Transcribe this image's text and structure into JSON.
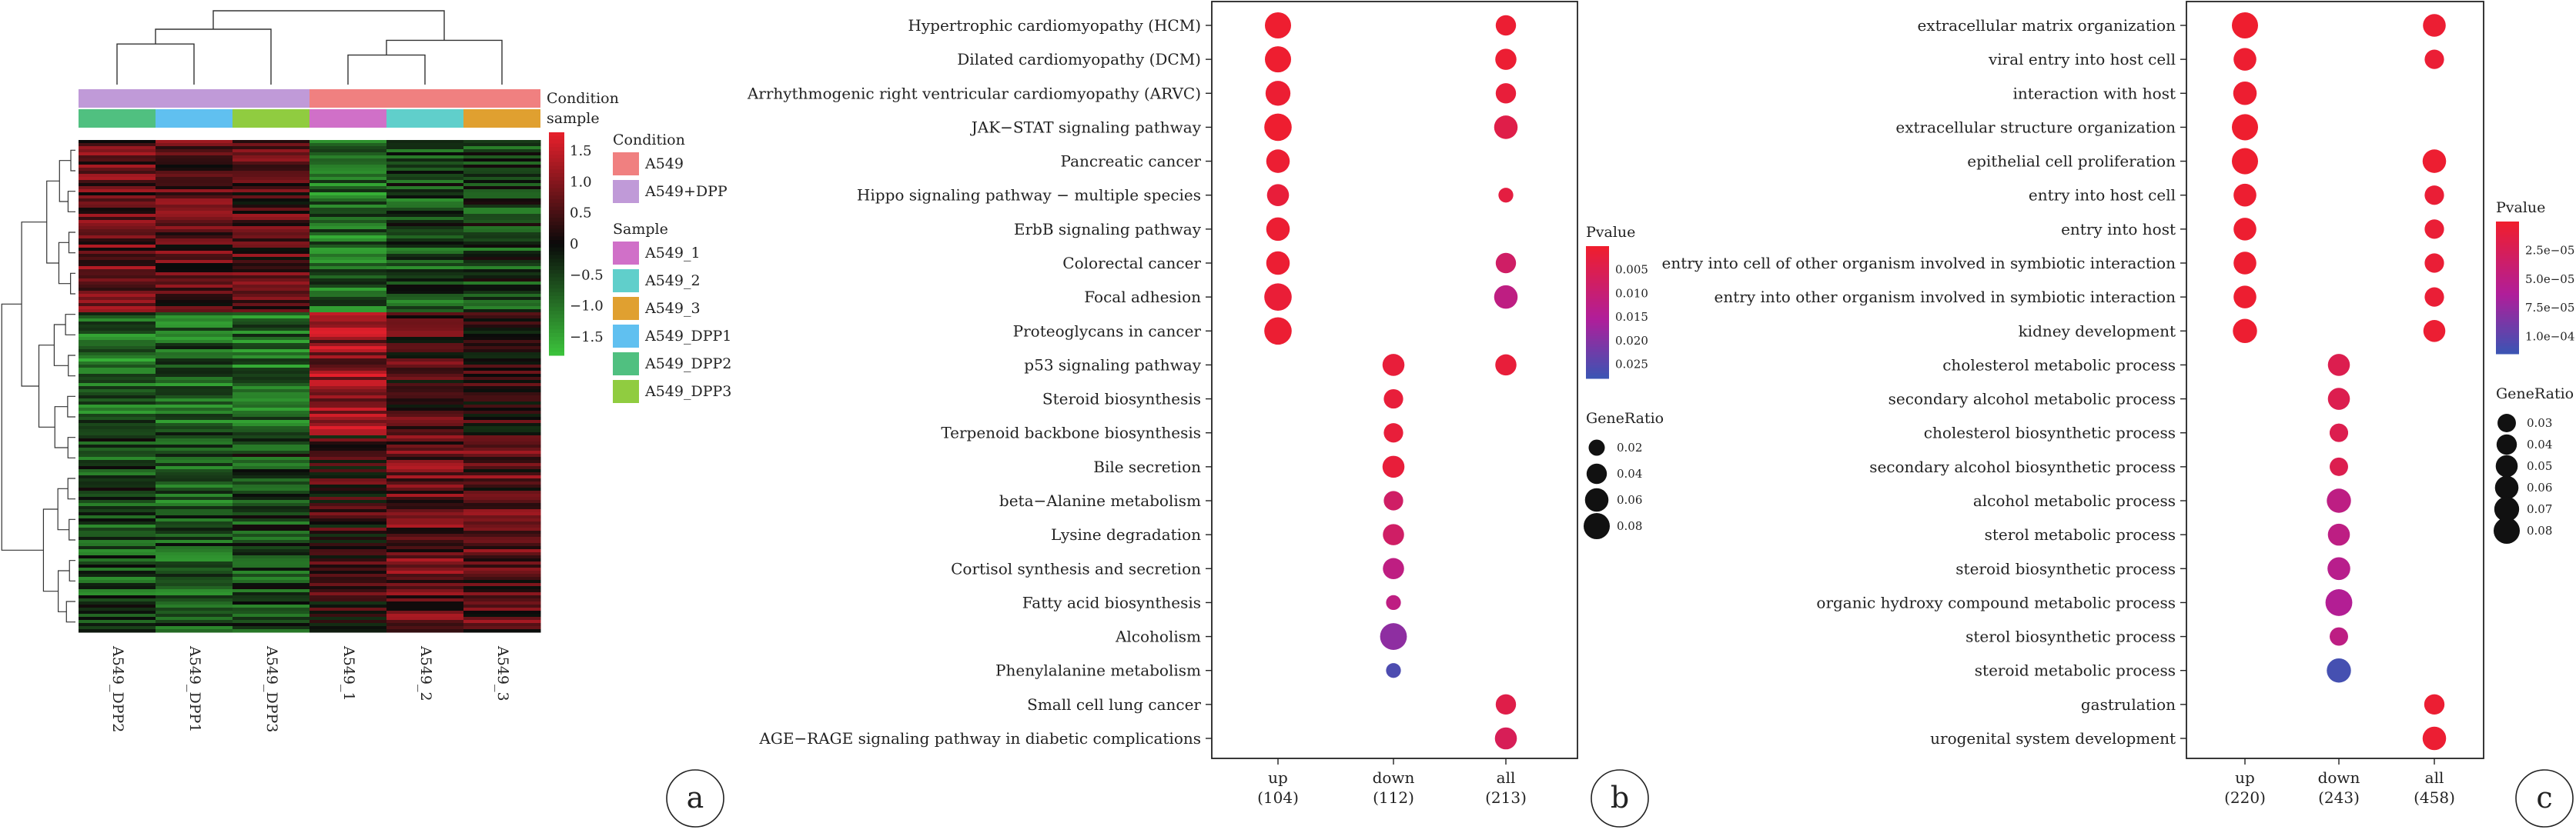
{
  "chart_data": [
    {
      "panel": "a",
      "type": "heatmap",
      "columns": [
        "A549_DPP2",
        "A549_DPP1",
        "A549_DPP3",
        "A549_1",
        "A549_2",
        "A549_3"
      ],
      "annotation_rows": [
        "Condition",
        "sample"
      ],
      "condition_legend": {
        "title": "Condition",
        "items": [
          {
            "label": "A549",
            "color": "#F08080"
          },
          {
            "label": "A549+DPP",
            "color": "#C09AD8"
          }
        ]
      },
      "sample_legend": {
        "title": "Sample",
        "items": [
          {
            "label": "A549_1",
            "color": "#D070C8"
          },
          {
            "label": "A549_2",
            "color": "#60CFCB"
          },
          {
            "label": "A549_3",
            "color": "#E0A030"
          },
          {
            "label": "A549_DPP1",
            "color": "#60C0F0"
          },
          {
            "label": "A549_DPP2",
            "color": "#50C080"
          },
          {
            "label": "A549_DPP3",
            "color": "#90CC40"
          }
        ]
      },
      "column_condition": [
        "A549+DPP",
        "A549+DPP",
        "A549+DPP",
        "A549",
        "A549",
        "A549"
      ],
      "column_sample": [
        "A549_DPP2",
        "A549_DPP1",
        "A549_DPP3",
        "A549_1",
        "A549_2",
        "A549_3"
      ],
      "colorbar": {
        "ticks": [
          1.5,
          1.0,
          0.5,
          0,
          -0.5,
          -1.0,
          -1.5
        ],
        "tick_labels": [
          "1.5",
          "1.0",
          "0.5",
          "0",
          "−0.5",
          "−1.0",
          "−1.5"
        ],
        "range": [
          -1.8,
          1.8
        ]
      },
      "column_dendrogram": [
        {
          "a": 0,
          "b": 1,
          "h": 0.55
        },
        {
          "a": 3,
          "b": 4,
          "h": 0.4
        },
        {
          "a": "c1",
          "b": 2,
          "h": 0.75
        },
        {
          "a": "c2",
          "b": 5,
          "h": 0.6
        },
        {
          "a": "c3",
          "b": "c4",
          "h": 1.0
        }
      ],
      "row_blocks": [
        {
          "frac": 0.35,
          "values": [
            0.7,
            0.6,
            0.5,
            -0.9,
            -0.6,
            -0.5
          ]
        },
        {
          "frac": 0.25,
          "values": [
            -0.9,
            -0.8,
            -0.9,
            1.1,
            0.4,
            0.3
          ]
        },
        {
          "frac": 0.4,
          "values": [
            -0.6,
            -0.7,
            -0.5,
            0.3,
            0.7,
            0.6
          ]
        }
      ]
    },
    {
      "panel": "b",
      "type": "scatter",
      "x_categories": [
        "up",
        "down",
        "all"
      ],
      "x_counts": [
        "(104)",
        "(112)",
        "(213)"
      ],
      "terms": [
        "Hypertrophic cardiomyopathy (HCM)",
        "Dilated cardiomyopathy (DCM)",
        "Arrhythmogenic right ventricular cardiomyopathy (ARVC)",
        "JAK−STAT signaling pathway",
        "Pancreatic cancer",
        "Hippo signaling pathway − multiple species",
        "ErbB signaling pathway",
        "Colorectal cancer",
        "Focal adhesion",
        "Proteoglycans in cancer",
        "p53 signaling pathway",
        "Steroid biosynthesis",
        "Terpenoid backbone biosynthesis",
        "Bile secretion",
        "beta−Alanine metabolism",
        "Lysine degradation",
        "Cortisol synthesis and secretion",
        "Fatty acid biosynthesis",
        "Alcoholism",
        "Phenylalanine metabolism",
        "Small cell lung cancer",
        "AGE−RAGE signaling pathway in diabetic complications"
      ],
      "points": [
        {
          "term": 0,
          "x": "up",
          "gene_ratio": 0.08,
          "pvalue": 0.0005
        },
        {
          "term": 0,
          "x": "all",
          "gene_ratio": 0.04,
          "pvalue": 0.001
        },
        {
          "term": 1,
          "x": "up",
          "gene_ratio": 0.08,
          "pvalue": 0.0005
        },
        {
          "term": 1,
          "x": "all",
          "gene_ratio": 0.045,
          "pvalue": 0.001
        },
        {
          "term": 2,
          "x": "up",
          "gene_ratio": 0.07,
          "pvalue": 0.001
        },
        {
          "term": 2,
          "x": "all",
          "gene_ratio": 0.04,
          "pvalue": 0.002
        },
        {
          "term": 3,
          "x": "up",
          "gene_ratio": 0.09,
          "pvalue": 0.0005
        },
        {
          "term": 3,
          "x": "all",
          "gene_ratio": 0.06,
          "pvalue": 0.004
        },
        {
          "term": 4,
          "x": "up",
          "gene_ratio": 0.06,
          "pvalue": 0.001
        },
        {
          "term": 5,
          "x": "up",
          "gene_ratio": 0.05,
          "pvalue": 0.002
        },
        {
          "term": 5,
          "x": "all",
          "gene_ratio": 0.015,
          "pvalue": 0.003
        },
        {
          "term": 6,
          "x": "up",
          "gene_ratio": 0.06,
          "pvalue": 0.001
        },
        {
          "term": 7,
          "x": "up",
          "gene_ratio": 0.06,
          "pvalue": 0.001
        },
        {
          "term": 7,
          "x": "all",
          "gene_ratio": 0.04,
          "pvalue": 0.008
        },
        {
          "term": 8,
          "x": "up",
          "gene_ratio": 0.09,
          "pvalue": 0.0015
        },
        {
          "term": 8,
          "x": "all",
          "gene_ratio": 0.06,
          "pvalue": 0.012
        },
        {
          "term": 9,
          "x": "up",
          "gene_ratio": 0.09,
          "pvalue": 0.001
        },
        {
          "term": 10,
          "x": "down",
          "gene_ratio": 0.05,
          "pvalue": 0.002
        },
        {
          "term": 10,
          "x": "all",
          "gene_ratio": 0.045,
          "pvalue": 0.002
        },
        {
          "term": 11,
          "x": "down",
          "gene_ratio": 0.035,
          "pvalue": 0.002
        },
        {
          "term": 12,
          "x": "down",
          "gene_ratio": 0.035,
          "pvalue": 0.002
        },
        {
          "term": 13,
          "x": "down",
          "gene_ratio": 0.05,
          "pvalue": 0.002
        },
        {
          "term": 14,
          "x": "down",
          "gene_ratio": 0.035,
          "pvalue": 0.008
        },
        {
          "term": 15,
          "x": "down",
          "gene_ratio": 0.045,
          "pvalue": 0.008
        },
        {
          "term": 16,
          "x": "down",
          "gene_ratio": 0.045,
          "pvalue": 0.012
        },
        {
          "term": 17,
          "x": "down",
          "gene_ratio": 0.015,
          "pvalue": 0.012
        },
        {
          "term": 18,
          "x": "down",
          "gene_ratio": 0.085,
          "pvalue": 0.019
        },
        {
          "term": 19,
          "x": "down",
          "gene_ratio": 0.015,
          "pvalue": 0.026
        },
        {
          "term": 20,
          "x": "all",
          "gene_ratio": 0.04,
          "pvalue": 0.004
        },
        {
          "term": 21,
          "x": "all",
          "gene_ratio": 0.05,
          "pvalue": 0.006
        }
      ],
      "pvalue_legend": {
        "title": "Pvalue",
        "ticks": [
          0.005,
          0.01,
          0.015,
          0.02,
          0.025
        ],
        "tick_labels": [
          "0.005",
          "0.010",
          "0.015",
          "0.020",
          "0.025"
        ],
        "range": [
          0.0,
          0.028
        ]
      },
      "size_legend": {
        "title": "GeneRatio",
        "values": [
          0.02,
          0.04,
          0.06,
          0.08
        ],
        "labels": [
          "0.02",
          "0.04",
          "0.06",
          "0.08"
        ]
      }
    },
    {
      "panel": "c",
      "type": "scatter",
      "x_categories": [
        "up",
        "down",
        "all"
      ],
      "x_counts": [
        "(220)",
        "(243)",
        "(458)"
      ],
      "terms": [
        "extracellular matrix organization",
        "viral entry into host cell",
        "interaction with host",
        "extracellular structure organization",
        "epithelial cell proliferation",
        "entry into host cell",
        "entry into host",
        "entry into cell of other organism involved in symbiotic interaction",
        "entry into other organism involved in symbiotic interaction",
        "kidney development",
        "cholesterol metabolic process",
        "secondary alcohol metabolic process",
        "cholesterol biosynthetic process",
        "secondary alcohol biosynthetic process",
        "alcohol metabolic process",
        "sterol metabolic process",
        "steroid biosynthetic process",
        "organic hydroxy compound metabolic process",
        "sterol biosynthetic process",
        "steroid metabolic process",
        "gastrulation",
        "urogenital system development"
      ],
      "points": [
        {
          "term": 0,
          "x": "up",
          "gene_ratio": 0.08,
          "pvalue": 2e-06
        },
        {
          "term": 0,
          "x": "all",
          "gene_ratio": 0.055,
          "pvalue": 4e-06
        },
        {
          "term": 1,
          "x": "up",
          "gene_ratio": 0.055,
          "pvalue": 3e-06
        },
        {
          "term": 1,
          "x": "all",
          "gene_ratio": 0.035,
          "pvalue": 5e-06
        },
        {
          "term": 2,
          "x": "up",
          "gene_ratio": 0.06,
          "pvalue": 3e-06
        },
        {
          "term": 3,
          "x": "up",
          "gene_ratio": 0.08,
          "pvalue": 2e-06
        },
        {
          "term": 4,
          "x": "up",
          "gene_ratio": 0.08,
          "pvalue": 2e-06
        },
        {
          "term": 4,
          "x": "all",
          "gene_ratio": 0.06,
          "pvalue": 3e-06
        },
        {
          "term": 5,
          "x": "up",
          "gene_ratio": 0.055,
          "pvalue": 3e-06
        },
        {
          "term": 5,
          "x": "all",
          "gene_ratio": 0.035,
          "pvalue": 6e-06
        },
        {
          "term": 6,
          "x": "up",
          "gene_ratio": 0.055,
          "pvalue": 3e-06
        },
        {
          "term": 6,
          "x": "all",
          "gene_ratio": 0.035,
          "pvalue": 6e-06
        },
        {
          "term": 7,
          "x": "up",
          "gene_ratio": 0.055,
          "pvalue": 3e-06
        },
        {
          "term": 7,
          "x": "all",
          "gene_ratio": 0.035,
          "pvalue": 6e-06
        },
        {
          "term": 8,
          "x": "up",
          "gene_ratio": 0.055,
          "pvalue": 3e-06
        },
        {
          "term": 8,
          "x": "all",
          "gene_ratio": 0.035,
          "pvalue": 6e-06
        },
        {
          "term": 9,
          "x": "up",
          "gene_ratio": 0.065,
          "pvalue": 3e-06
        },
        {
          "term": 9,
          "x": "all",
          "gene_ratio": 0.05,
          "pvalue": 4e-06
        },
        {
          "term": 10,
          "x": "down",
          "gene_ratio": 0.05,
          "pvalue": 2e-05
        },
        {
          "term": 11,
          "x": "down",
          "gene_ratio": 0.05,
          "pvalue": 2e-05
        },
        {
          "term": 12,
          "x": "down",
          "gene_ratio": 0.03,
          "pvalue": 2e-05
        },
        {
          "term": 12,
          "x": "down",
          "gene_ratio": 0.03,
          "pvalue": 2e-05
        },
        {
          "term": 13,
          "x": "down",
          "gene_ratio": 0.03,
          "pvalue": 2e-05
        },
        {
          "term": 14,
          "x": "down",
          "gene_ratio": 0.065,
          "pvalue": 5e-05
        },
        {
          "term": 15,
          "x": "down",
          "gene_ratio": 0.05,
          "pvalue": 5e-05
        },
        {
          "term": 16,
          "x": "down",
          "gene_ratio": 0.055,
          "pvalue": 5.5e-05
        },
        {
          "term": 17,
          "x": "down",
          "gene_ratio": 0.085,
          "pvalue": 6e-05
        },
        {
          "term": 18,
          "x": "down",
          "gene_ratio": 0.03,
          "pvalue": 5e-05
        },
        {
          "term": 19,
          "x": "down",
          "gene_ratio": 0.065,
          "pvalue": 0.00011
        },
        {
          "term": 20,
          "x": "all",
          "gene_ratio": 0.04,
          "pvalue": 4e-06
        },
        {
          "term": 21,
          "x": "all",
          "gene_ratio": 0.06,
          "pvalue": 4e-06
        }
      ],
      "pvalue_legend": {
        "title": "Pvalue",
        "ticks": [
          2.5e-05,
          5e-05,
          7.5e-05,
          0.0001
        ],
        "tick_labels": [
          "2.5e−05",
          "5.0e−05",
          "7.5e−05",
          "1.0e−04"
        ],
        "range": [
          0.0,
          0.000115
        ]
      },
      "size_legend": {
        "title": "GeneRatio",
        "values": [
          0.03,
          0.04,
          0.05,
          0.06,
          0.07,
          0.08
        ],
        "labels": [
          "0.03",
          "0.04",
          "0.05",
          "0.06",
          "0.07",
          "0.08"
        ]
      }
    }
  ],
  "panel_labels": {
    "a": "a",
    "b": "b",
    "c": "c"
  },
  "colors": {
    "heat_low": "#3CC43C",
    "heat_mid": "#0A0A0A",
    "heat_high": "#E8202C",
    "pval_low": "#F01E2C",
    "pval_mid": "#B01E9A",
    "pval_high": "#3A55B4"
  }
}
